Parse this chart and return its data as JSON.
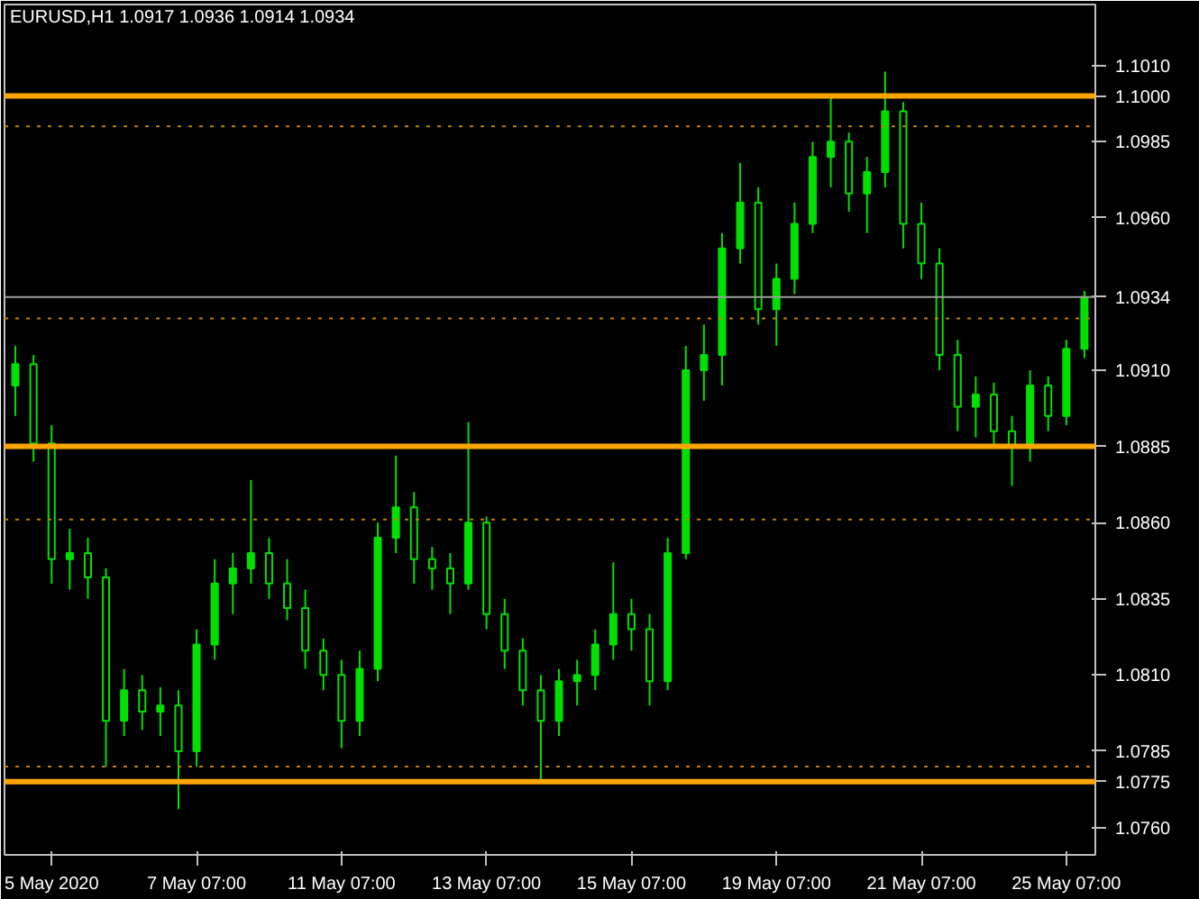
{
  "chart_data": {
    "type": "candlestick",
    "title": "EURUSD,H1 1.0917 1.0936 1.0914 1.0934",
    "color": "#00e000",
    "categories": [
      null,
      null,
      "5 May 2020",
      null,
      null,
      null,
      null,
      null,
      null,
      null,
      "7 May 07:00",
      null,
      null,
      null,
      null,
      null,
      null,
      null,
      "11 May 07:00",
      null,
      null,
      null,
      null,
      null,
      null,
      null,
      "13 May 07:00",
      null,
      null,
      null,
      null,
      null,
      null,
      null,
      "15 May 07:00",
      null,
      null,
      null,
      null,
      null,
      null,
      null,
      "19 May 07:00",
      null,
      null,
      null,
      null,
      null,
      null,
      null,
      "21 May 07:00",
      null,
      null,
      null,
      null,
      null,
      null,
      null,
      "25 May 07:00",
      null
    ],
    "ohlc": [
      [
        1.0905,
        1.0918,
        1.0895,
        1.0912
      ],
      [
        1.0912,
        1.0915,
        1.088,
        1.0886
      ],
      [
        1.0886,
        1.0892,
        1.084,
        1.0848
      ],
      [
        1.0848,
        1.0858,
        1.0838,
        1.085
      ],
      [
        1.085,
        1.0855,
        1.0835,
        1.0842
      ],
      [
        1.0842,
        1.0845,
        1.078,
        1.0795
      ],
      [
        1.0795,
        1.0812,
        1.079,
        1.0805
      ],
      [
        1.0805,
        1.081,
        1.0792,
        1.0798
      ],
      [
        1.0798,
        1.0806,
        1.079,
        1.08
      ],
      [
        1.08,
        1.0805,
        1.0766,
        1.0785
      ],
      [
        1.0785,
        1.0825,
        1.078,
        1.082
      ],
      [
        1.082,
        1.0848,
        1.0815,
        1.084
      ],
      [
        1.084,
        1.085,
        1.083,
        1.0845
      ],
      [
        1.0845,
        1.0874,
        1.084,
        1.085
      ],
      [
        1.085,
        1.0855,
        1.0835,
        1.084
      ],
      [
        1.084,
        1.0848,
        1.0828,
        1.0832
      ],
      [
        1.0832,
        1.0838,
        1.0812,
        1.0818
      ],
      [
        1.0818,
        1.0822,
        1.0805,
        1.081
      ],
      [
        1.081,
        1.0815,
        1.0786,
        1.0795
      ],
      [
        1.0795,
        1.0818,
        1.079,
        1.0812
      ],
      [
        1.0812,
        1.086,
        1.0808,
        1.0855
      ],
      [
        1.0855,
        1.0882,
        1.085,
        1.0865
      ],
      [
        1.0865,
        1.087,
        1.084,
        1.0848
      ],
      [
        1.0848,
        1.0852,
        1.0838,
        1.0845
      ],
      [
        1.0845,
        1.085,
        1.083,
        1.084
      ],
      [
        1.084,
        1.0893,
        1.0838,
        1.086
      ],
      [
        1.086,
        1.0862,
        1.0825,
        1.083
      ],
      [
        1.083,
        1.0835,
        1.0812,
        1.0818
      ],
      [
        1.0818,
        1.0822,
        1.08,
        1.0805
      ],
      [
        1.0805,
        1.081,
        1.0775,
        1.0795
      ],
      [
        1.0795,
        1.0812,
        1.079,
        1.0808
      ],
      [
        1.0808,
        1.0815,
        1.08,
        1.081
      ],
      [
        1.081,
        1.0825,
        1.0805,
        1.082
      ],
      [
        1.082,
        1.0847,
        1.0815,
        1.083
      ],
      [
        1.083,
        1.0835,
        1.0818,
        1.0825
      ],
      [
        1.0825,
        1.083,
        1.08,
        1.0808
      ],
      [
        1.0808,
        1.0855,
        1.0805,
        1.085
      ],
      [
        1.085,
        1.0918,
        1.0848,
        1.091
      ],
      [
        1.091,
        1.0925,
        1.09,
        1.0915
      ],
      [
        1.0915,
        1.0955,
        1.0905,
        1.095
      ],
      [
        1.095,
        1.0978,
        1.0945,
        1.0965
      ],
      [
        1.0965,
        1.097,
        1.0925,
        1.093
      ],
      [
        1.093,
        1.0945,
        1.0918,
        1.094
      ],
      [
        1.094,
        1.0965,
        1.0935,
        1.0958
      ],
      [
        1.0958,
        1.0985,
        1.0955,
        1.098
      ],
      [
        1.098,
        1.1,
        1.097,
        1.0985
      ],
      [
        1.0985,
        1.0988,
        1.0962,
        1.0968
      ],
      [
        1.0968,
        1.098,
        1.0955,
        1.0975
      ],
      [
        1.0975,
        1.1008,
        1.097,
        1.0995
      ],
      [
        1.0995,
        1.0998,
        1.095,
        1.0958
      ],
      [
        1.0958,
        1.0965,
        1.094,
        1.0945
      ],
      [
        1.0945,
        1.095,
        1.091,
        1.0915
      ],
      [
        1.0915,
        1.092,
        1.089,
        1.0898
      ],
      [
        1.0898,
        1.0908,
        1.0888,
        1.0902
      ],
      [
        1.0902,
        1.0906,
        1.0885,
        1.089
      ],
      [
        1.089,
        1.0895,
        1.0872,
        1.0885
      ],
      [
        1.0885,
        1.091,
        1.088,
        1.0905
      ],
      [
        1.0905,
        1.0908,
        1.089,
        1.0895
      ],
      [
        1.0895,
        1.092,
        1.0892,
        1.0917
      ],
      [
        1.0917,
        1.0936,
        1.0914,
        1.0934
      ]
    ],
    "ylim": [
      1.0751,
      1.103
    ],
    "yticks": [
      {
        "value": 1.076,
        "label": "1.0760"
      },
      {
        "value": 1.0785,
        "label": "1.0785"
      },
      {
        "value": 1.081,
        "label": "1.0810"
      },
      {
        "value": 1.0835,
        "label": "1.0835"
      },
      {
        "value": 1.086,
        "label": "1.0860"
      },
      {
        "value": 1.091,
        "label": "1.0910"
      },
      {
        "value": 1.096,
        "label": "1.0960"
      },
      {
        "value": 1.0985,
        "label": "1.0985"
      },
      {
        "value": 1.101,
        "label": "1.1010"
      }
    ],
    "ref_lines": [
      {
        "axis": "y",
        "value": 1.1,
        "label": "1.1000",
        "color": "#ffa500",
        "line_style": "solid"
      },
      {
        "axis": "y",
        "value": 1.0885,
        "label": "1.0885",
        "color": "#ffa500",
        "line_style": "solid"
      },
      {
        "axis": "y",
        "value": 1.0775,
        "label": "1.0775",
        "color": "#ffa500",
        "line_style": "solid"
      },
      {
        "axis": "y",
        "value": 1.099,
        "color": "#c08000",
        "line_style": "dotted"
      },
      {
        "axis": "y",
        "value": 1.0927,
        "color": "#c08000",
        "line_style": "dotted"
      },
      {
        "axis": "y",
        "value": 1.0861,
        "color": "#c08000",
        "line_style": "dotted"
      },
      {
        "axis": "y",
        "value": 1.078,
        "color": "#c08000",
        "line_style": "dotted"
      },
      {
        "axis": "y",
        "value": 1.0934,
        "label": "1.0934",
        "color": "#a0a0a0",
        "line_style": "solid"
      }
    ],
    "grid": false
  }
}
